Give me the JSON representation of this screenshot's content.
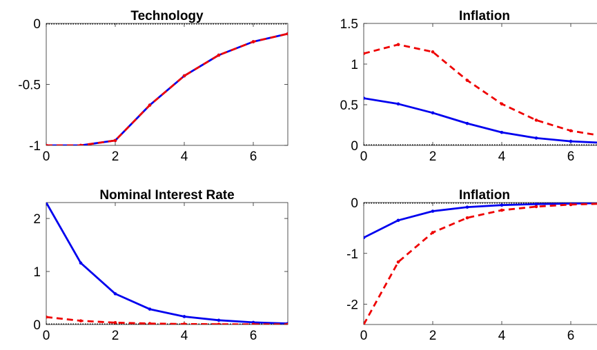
{
  "chart_data": [
    {
      "type": "line",
      "title": "Technology",
      "xlim": [
        0,
        7
      ],
      "ylim": [
        -1,
        0
      ],
      "xticks": [
        0,
        2,
        4,
        6
      ],
      "yticks": [
        -1,
        -0.5,
        0
      ],
      "ytick_labels": [
        "-1",
        "-0.5",
        "0"
      ],
      "zero_line": true,
      "series": [
        {
          "x": [
            0,
            1,
            2,
            3,
            4,
            5,
            6,
            7
          ],
          "values": [
            -1.0,
            -1.0,
            -0.96,
            -0.67,
            -0.43,
            -0.26,
            -0.15,
            -0.085
          ],
          "style": "solid",
          "color": "#0000ee"
        },
        {
          "x": [
            0,
            1,
            2,
            3,
            4,
            5,
            6,
            7
          ],
          "values": [
            -1.0,
            -1.0,
            -0.96,
            -0.67,
            -0.43,
            -0.26,
            -0.15,
            -0.085
          ],
          "style": "dashed",
          "color": "#ee0000"
        }
      ]
    },
    {
      "type": "line",
      "title": "Inflation",
      "xlim": [
        0,
        7
      ],
      "ylim": [
        0,
        1.5
      ],
      "xticks": [
        0,
        2,
        4,
        6
      ],
      "yticks": [
        0,
        0.5,
        1,
        1.5
      ],
      "ytick_labels": [
        "0",
        "0.5",
        "1",
        "1.5"
      ],
      "zero_line": true,
      "series": [
        {
          "x": [
            0,
            1,
            2,
            3,
            4,
            5,
            6,
            7
          ],
          "values": [
            0.58,
            0.51,
            0.4,
            0.27,
            0.16,
            0.09,
            0.05,
            0.03
          ],
          "style": "solid",
          "color": "#0000ee"
        },
        {
          "x": [
            0,
            1,
            2,
            3,
            4,
            5,
            6,
            7
          ],
          "values": [
            1.13,
            1.24,
            1.15,
            0.8,
            0.51,
            0.31,
            0.18,
            0.11
          ],
          "style": "dashed",
          "color": "#ee0000"
        }
      ]
    },
    {
      "type": "line",
      "title": "Nominal Interest Rate",
      "xlim": [
        0,
        7
      ],
      "ylim": [
        0,
        2.3
      ],
      "xticks": [
        0,
        2,
        4,
        6
      ],
      "yticks": [
        0,
        1,
        2
      ],
      "ytick_labels": [
        "0",
        "1",
        "2"
      ],
      "zero_line": true,
      "series": [
        {
          "x": [
            0,
            1,
            2,
            3,
            4,
            5,
            6,
            7
          ],
          "values": [
            2.3,
            1.16,
            0.58,
            0.29,
            0.15,
            0.08,
            0.04,
            0.02
          ],
          "style": "solid",
          "color": "#0000ee"
        },
        {
          "x": [
            0,
            1,
            2,
            3,
            4,
            5,
            6,
            7
          ],
          "values": [
            0.14,
            0.07,
            0.035,
            0.018,
            0.009,
            0.005,
            0.003,
            0.002
          ],
          "style": "dashed",
          "color": "#ee0000"
        }
      ]
    },
    {
      "type": "line",
      "title": "Inflation",
      "xlim": [
        0,
        7
      ],
      "ylim": [
        -2.4,
        0
      ],
      "xticks": [
        0,
        2,
        4,
        6
      ],
      "yticks": [
        -2,
        -1,
        0
      ],
      "ytick_labels": [
        "-2",
        "-1",
        "0"
      ],
      "zero_line": true,
      "series": [
        {
          "x": [
            0,
            1,
            2,
            3,
            4,
            5,
            6,
            7
          ],
          "values": [
            -0.69,
            -0.35,
            -0.17,
            -0.09,
            -0.05,
            -0.03,
            -0.02,
            -0.01
          ],
          "style": "solid",
          "color": "#0000ee"
        },
        {
          "x": [
            0,
            1,
            2,
            3,
            4,
            5,
            6,
            7
          ],
          "values": [
            -2.4,
            -1.17,
            -0.59,
            -0.3,
            -0.15,
            -0.08,
            -0.04,
            -0.02
          ],
          "style": "dashed",
          "color": "#ee0000"
        }
      ]
    }
  ]
}
